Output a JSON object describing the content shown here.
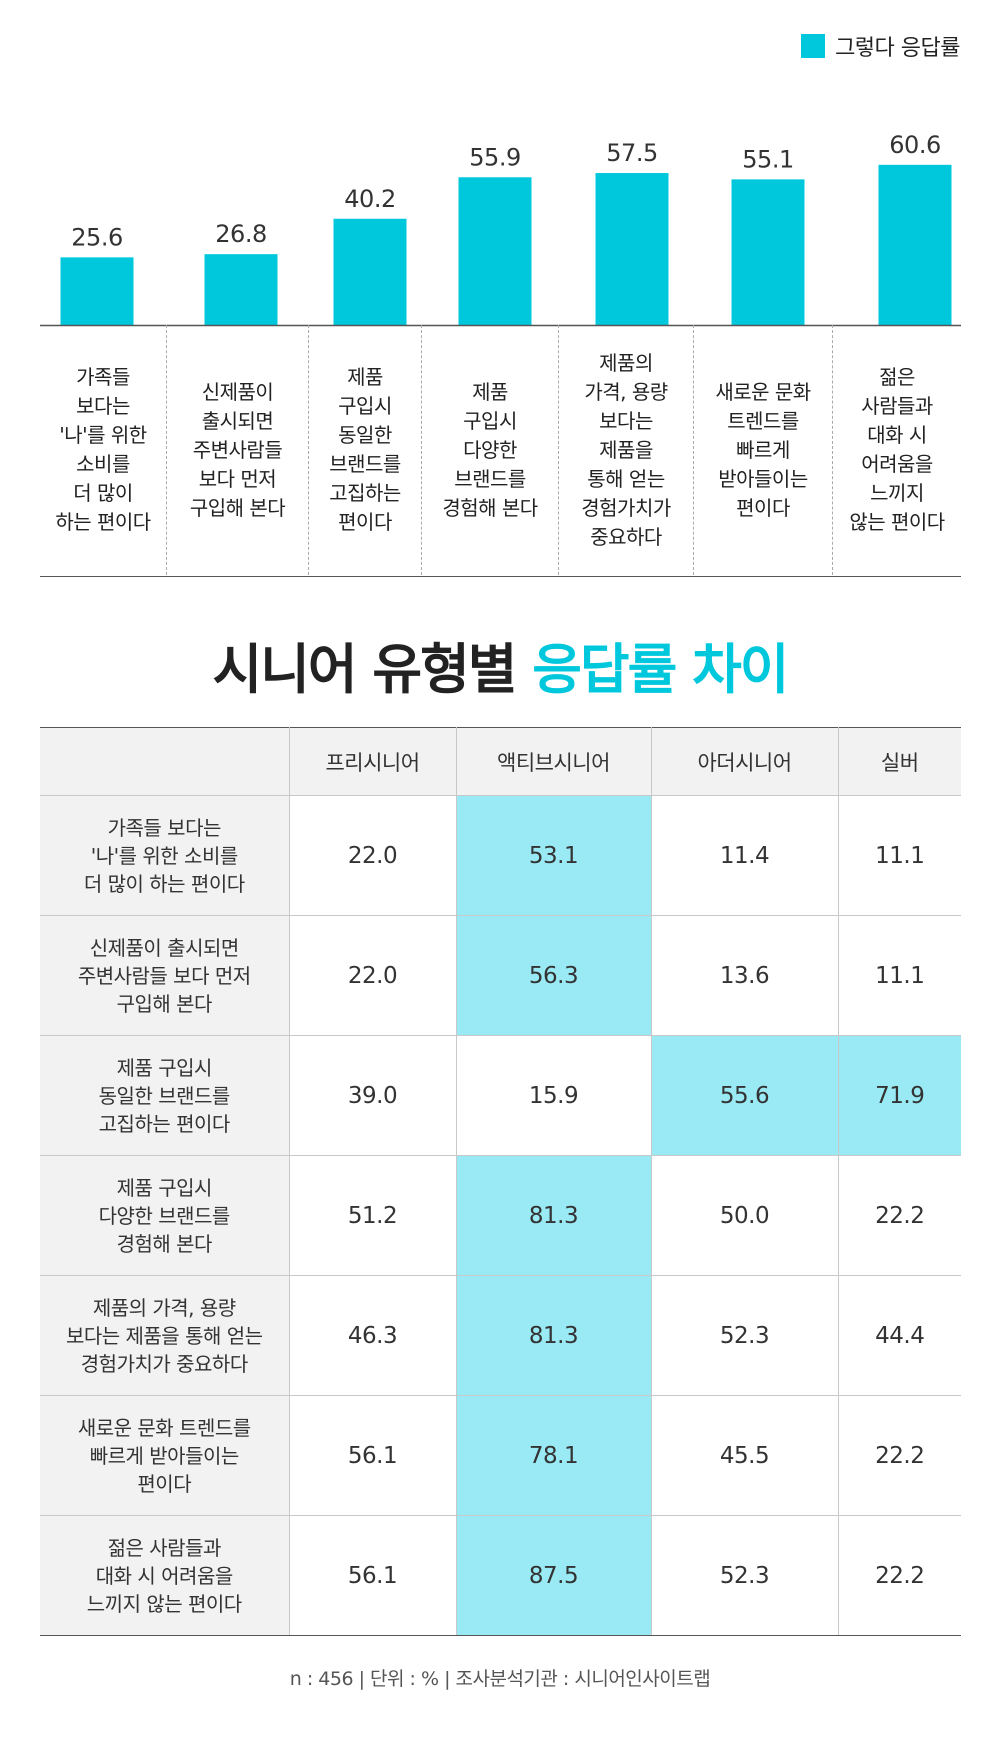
{
  "legend": {
    "label": "그렇다 응답률",
    "color": "#00c8dc"
  },
  "chart_data": {
    "type": "bar",
    "categories": [
      "가족들\n보다는\n'나'를 위한\n소비를\n더 많이\n하는 편이다",
      "신제품이\n출시되면\n주변사람들\n보다 먼저\n구입해 본다",
      "제품\n구입시\n동일한\n브랜드를\n고집하는\n편이다",
      "제품\n구입시\n다양한\n브랜드를\n경험해 본다",
      "제품의\n가격, 용량\n보다는\n제품을\n통해 얻는\n경험가치가\n중요하다",
      "새로운 문화\n트렌드를\n빠르게\n받아들이는\n편이다",
      "젊은\n사람들과\n대화 시\n어려움을\n느끼지\n않는 편이다"
    ],
    "series": [
      {
        "name": "그렇다 응답률",
        "values": [
          25.6,
          26.8,
          40.2,
          55.9,
          57.5,
          55.1,
          60.6
        ]
      }
    ],
    "value_labels": [
      "25.6",
      "26.8",
      "40.2",
      "55.9",
      "57.5",
      "55.1",
      "60.6"
    ],
    "ylim": [
      0,
      70
    ],
    "legend_position": "top-right",
    "grid": false,
    "bar_color": "#00c8dc"
  },
  "title": {
    "part1": "시니어 유형별",
    "part2": "응답률 차이",
    "accent_color": "#00c8dc"
  },
  "table": {
    "headers": [
      "",
      "프리시니어",
      "액티브시니어",
      "아더시니어",
      "실버"
    ],
    "rows": [
      {
        "label": "가족들 보다는\n'나'를 위한 소비를\n더 많이 하는 편이다",
        "values": [
          "22.0",
          "53.1",
          "11.4",
          "11.1"
        ],
        "highlight": [
          false,
          true,
          false,
          false
        ]
      },
      {
        "label": "신제품이 출시되면\n주변사람들 보다 먼저\n구입해 본다",
        "values": [
          "22.0",
          "56.3",
          "13.6",
          "11.1"
        ],
        "highlight": [
          false,
          true,
          false,
          false
        ]
      },
      {
        "label": "제품 구입시\n동일한 브랜드를\n고집하는 편이다",
        "values": [
          "39.0",
          "15.9",
          "55.6",
          "71.9"
        ],
        "highlight": [
          false,
          false,
          true,
          true
        ]
      },
      {
        "label": "제품 구입시\n다양한 브랜드를\n경험해 본다",
        "values": [
          "51.2",
          "81.3",
          "50.0",
          "22.2"
        ],
        "highlight": [
          false,
          true,
          false,
          false
        ]
      },
      {
        "label": "제품의 가격, 용량\n보다는 제품을 통해 얻는\n경험가치가 중요하다",
        "values": [
          "46.3",
          "81.3",
          "52.3",
          "44.4"
        ],
        "highlight": [
          false,
          true,
          false,
          false
        ]
      },
      {
        "label": "새로운 문화 트렌드를\n빠르게 받아들이는\n편이다",
        "values": [
          "56.1",
          "78.1",
          "45.5",
          "22.2"
        ],
        "highlight": [
          false,
          true,
          false,
          false
        ]
      },
      {
        "label": "젊은 사람들과\n대화 시 어려움을\n느끼지 않는 편이다",
        "values": [
          "56.1",
          "87.5",
          "52.3",
          "22.2"
        ],
        "highlight": [
          false,
          true,
          false,
          false
        ]
      }
    ],
    "highlight_color": "#9aeaf5"
  },
  "footer": "n : 456  |  단위 : %  |  조사분석기관 : 시니어인사이트랩"
}
